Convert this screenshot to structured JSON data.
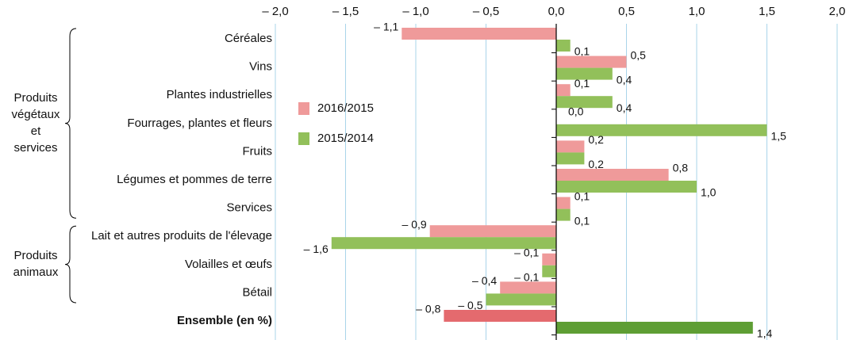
{
  "chart_data": {
    "type": "bar",
    "orientation": "horizontal",
    "categories": [
      "Céréales",
      "Vins",
      "Plantes industrielles",
      "Fourrages, plantes et fleurs",
      "Fruits",
      "Légumes et pommes de terre",
      "Services",
      "Lait et autres produits de l'élevage",
      "Volailles et œufs",
      "Bétail",
      "Ensemble (en %)"
    ],
    "groups": [
      {
        "lines": [
          "Produits",
          "végétaux",
          "et",
          "services"
        ]
      },
      {
        "lines": [
          "Produits",
          "animaux"
        ]
      }
    ],
    "series": [
      {
        "name": "2016/2015",
        "color": "#ef9a9a",
        "highlight_color": "#e46a6e",
        "values": [
          -1.1,
          0.5,
          0.1,
          0.0,
          0.2,
          0.8,
          0.1,
          -0.9,
          -0.1,
          -0.4,
          -0.8
        ],
        "value_labels": [
          "– 1,1",
          "0,5",
          "0,1",
          "0,0",
          "0,2",
          "0,8",
          "0,1",
          "– 0,9",
          "– 0,1",
          "– 0,4",
          "– 0,8"
        ]
      },
      {
        "name": "2015/2014",
        "color": "#92c05a",
        "highlight_color": "#5e9e34",
        "values": [
          0.1,
          0.4,
          0.4,
          1.5,
          0.2,
          1.0,
          0.1,
          -1.6,
          -0.1,
          -0.5,
          1.4
        ],
        "value_labels": [
          "0,1",
          "0,4",
          "0,4",
          "1,5",
          "0,2",
          "1,0",
          "0,1",
          "– 1,6",
          "– 0,1",
          "– 0,5",
          "1,4"
        ]
      }
    ],
    "xlim": [
      -2.0,
      2.0
    ],
    "xticks": [
      {
        "value": -2.0,
        "label": "– 2,0"
      },
      {
        "value": -1.5,
        "label": "– 1,5"
      },
      {
        "value": -1.0,
        "label": "– 1,0"
      },
      {
        "value": -0.5,
        "label": "– 0,5"
      },
      {
        "value": 0.0,
        "label": "0,0"
      },
      {
        "value": 0.5,
        "label": "0,5"
      },
      {
        "value": 1.0,
        "label": "1,0"
      },
      {
        "value": 1.5,
        "label": "1,5"
      },
      {
        "value": 2.0,
        "label": "2,0"
      }
    ],
    "grid": true
  }
}
